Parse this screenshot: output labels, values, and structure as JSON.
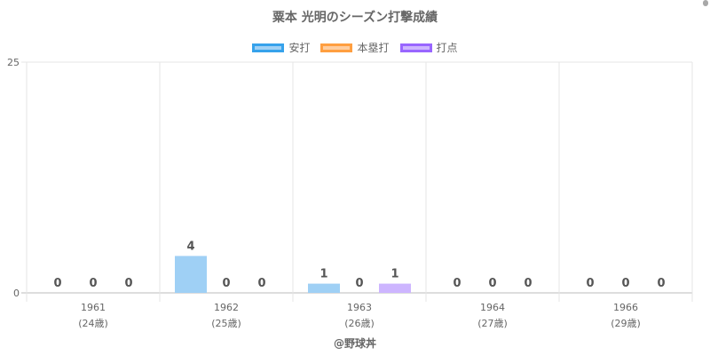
{
  "chart_data": {
    "type": "bar",
    "title": "粟本 光明のシーズン打撃成績",
    "categories": [
      "1961",
      "1962",
      "1963",
      "1964",
      "1966"
    ],
    "category_sublabels": [
      "(24歳)",
      "(25歳)",
      "(26歳)",
      "(27歳)",
      "(29歳)"
    ],
    "series": [
      {
        "name": "安打",
        "values": [
          0,
          4,
          1,
          0,
          0
        ],
        "fill": "#9fd0f5",
        "border": "#36a2eb"
      },
      {
        "name": "本塁打",
        "values": [
          0,
          0,
          0,
          0,
          0
        ],
        "fill": "#ffcd9f",
        "border": "#ff9f40"
      },
      {
        "name": "打点",
        "values": [
          0,
          0,
          1,
          0,
          0
        ],
        "fill": "#cdb5ff",
        "border": "#9966ff"
      }
    ],
    "ylim": [
      0,
      25
    ],
    "yticks": [
      "0",
      "25"
    ],
    "grid": true,
    "legend_position": "top",
    "data_labels": true
  },
  "credit": "@野球丼"
}
